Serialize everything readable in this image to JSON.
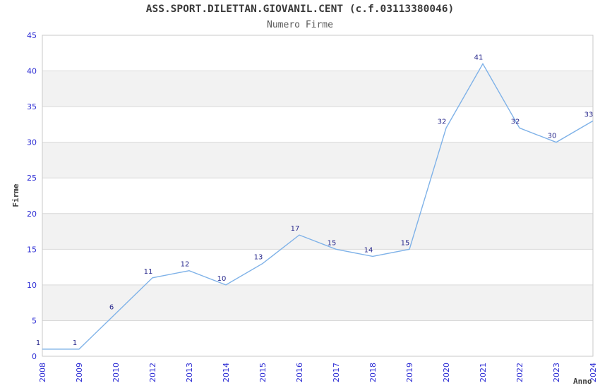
{
  "chart_data": {
    "type": "line",
    "title": "ASS.SPORT.DILETTAN.GIOVANIL.CENT (c.f.03113380046)",
    "subtitle": "Numero Firme",
    "xlabel": "Anno",
    "ylabel": "Firme",
    "categories": [
      "2008",
      "2009",
      "2010",
      "2012",
      "2013",
      "2014",
      "2015",
      "2016",
      "2017",
      "2018",
      "2019",
      "2020",
      "2021",
      "2022",
      "2023",
      "2024"
    ],
    "values": [
      1,
      1,
      6,
      11,
      12,
      10,
      13,
      17,
      15,
      14,
      15,
      32,
      41,
      32,
      30,
      33
    ],
    "series_name": "Numero Firme",
    "ylim": [
      0,
      45
    ],
    "yticks": [
      0,
      5,
      10,
      15,
      20,
      25,
      30,
      35,
      40,
      45
    ],
    "x_tick_rotation": 90,
    "grid": "alternating horizontal bands every 5 units",
    "legend": "none",
    "point_markers": "none",
    "data_labels_shown": true,
    "colors": {
      "line": "#7fb2e8",
      "data_label": "#28288c",
      "tick_label": "#2b2bd4",
      "band_fill": "#f2f2f2",
      "grid_line": "#d9d9d9",
      "plot_border": "#c9c9c9",
      "background": "#ffffff"
    }
  }
}
